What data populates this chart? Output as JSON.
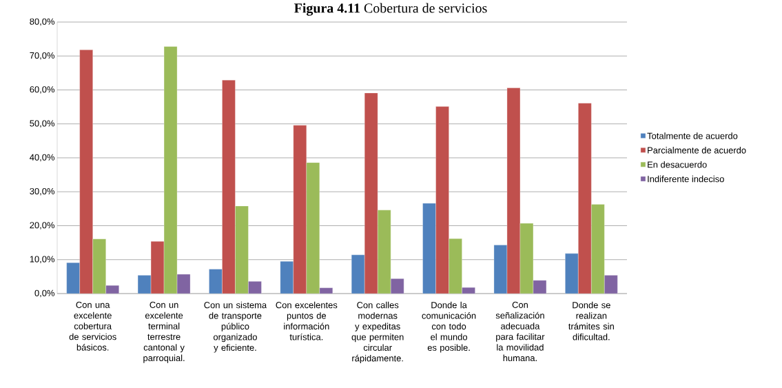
{
  "chart_data": {
    "type": "bar",
    "title": "**Figura 4.11** Cobertura de servicios",
    "categories": [
      "Con una excelente cobertura de servicios básicos.",
      "Con un excelente terminal terrestre cantonal y parroquial.",
      "Con un sistema de transporte público organizado y eficiente.",
      "Con excelentes puntos de información turística.",
      "Con calles modernas y expeditas que permiten circular rápidamente.",
      "Donde la comunicación con todo el mundo es posible.",
      "Con señalización adecuada para facilitar la movilidad humana.",
      "Donde se realizan trámites sin dificultad."
    ],
    "series": [
      {
        "name": "Totalmente de acuerdo",
        "color": "#4f81bd",
        "values": [
          9.1,
          5.4,
          7.2,
          9.5,
          11.4,
          26.6,
          14.3,
          11.8
        ]
      },
      {
        "name": "Parcialmente de acuerdo",
        "color": "#c0504d",
        "values": [
          71.8,
          15.4,
          62.9,
          49.6,
          59.1,
          55.1,
          60.6,
          56.1
        ]
      },
      {
        "name": "En desacuerdo",
        "color": "#9bbb59",
        "values": [
          16.1,
          72.8,
          25.8,
          38.6,
          24.6,
          16.2,
          20.7,
          26.3
        ]
      },
      {
        "name": "Indiferente indeciso",
        "color": "#8064a2",
        "values": [
          2.4,
          5.7,
          3.6,
          1.7,
          4.4,
          1.8,
          3.9,
          5.4
        ]
      }
    ],
    "ylim": [
      0,
      80
    ],
    "yticks": [
      {
        "value": 0,
        "label": "0,0%"
      },
      {
        "value": 10,
        "label": "10,0%"
      },
      {
        "value": 20,
        "label": "20,0%"
      },
      {
        "value": 30,
        "label": "30,0%"
      },
      {
        "value": 40,
        "label": "40,0%"
      },
      {
        "value": 50,
        "label": "50,0%"
      },
      {
        "value": 60,
        "label": "60,0%"
      },
      {
        "value": 70,
        "label": "70,0%"
      },
      {
        "value": 80,
        "label": "80,0%"
      }
    ],
    "grid": "y",
    "legend": "right"
  }
}
